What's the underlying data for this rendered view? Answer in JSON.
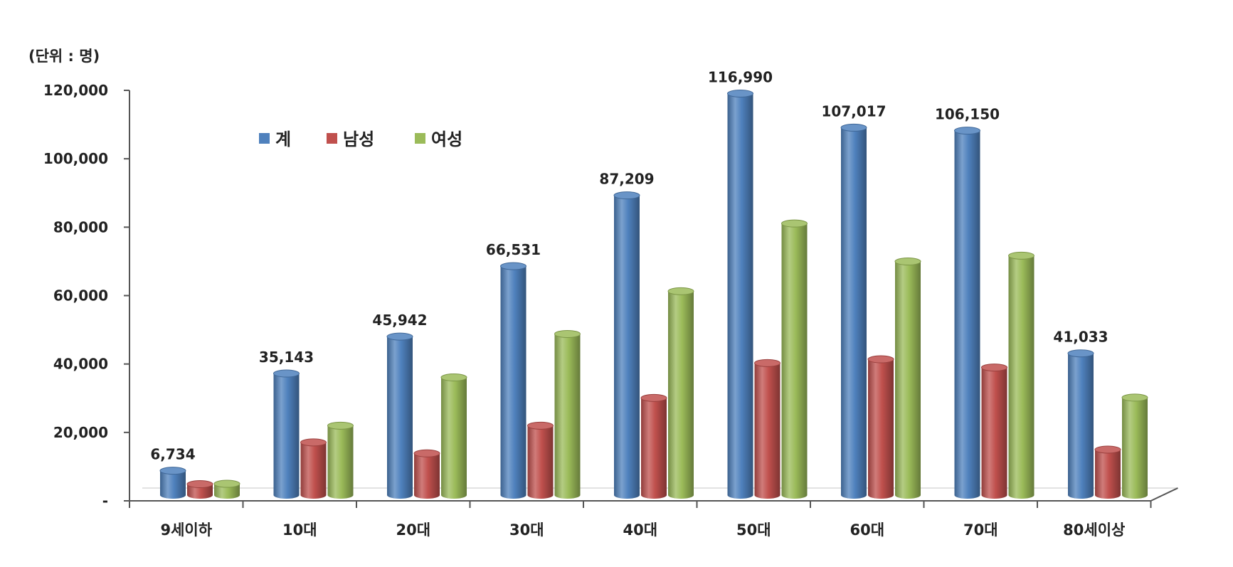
{
  "colors": {
    "total": "#4f81bd",
    "male": "#c0504d",
    "female": "#9bbb59",
    "axis": "#555555",
    "text": "#222222"
  },
  "chart_data": {
    "type": "bar",
    "unit_label": "(단위 : 명)",
    "categories": [
      "9세이하",
      "10대",
      "20대",
      "30대",
      "40대",
      "50대",
      "60대",
      "70대",
      "80세이상"
    ],
    "series": [
      {
        "name": "계",
        "values": [
          6734,
          35143,
          45942,
          66531,
          87209,
          116990,
          107017,
          106150,
          41033
        ]
      },
      {
        "name": "남성",
        "values": [
          2800,
          15000,
          11800,
          19900,
          28000,
          38200,
          39300,
          36900,
          12900
        ]
      },
      {
        "name": "여성",
        "values": [
          2900,
          19900,
          34000,
          46700,
          59200,
          79000,
          67900,
          69600,
          28100
        ]
      }
    ],
    "data_labels": [
      "6,734",
      "35,143",
      "45,942",
      "66,531",
      "87,209",
      "116,990",
      "107,017",
      "106,150",
      "41,033"
    ],
    "y_ticks": [
      0,
      20000,
      40000,
      60000,
      80000,
      100000,
      120000
    ],
    "y_tick_labels": [
      "-",
      "20,000",
      "40,000",
      "60,000",
      "80,000",
      "100,000",
      "120,000"
    ],
    "ylim": [
      0,
      120000
    ],
    "legend_position": "top-left",
    "grid": false
  }
}
